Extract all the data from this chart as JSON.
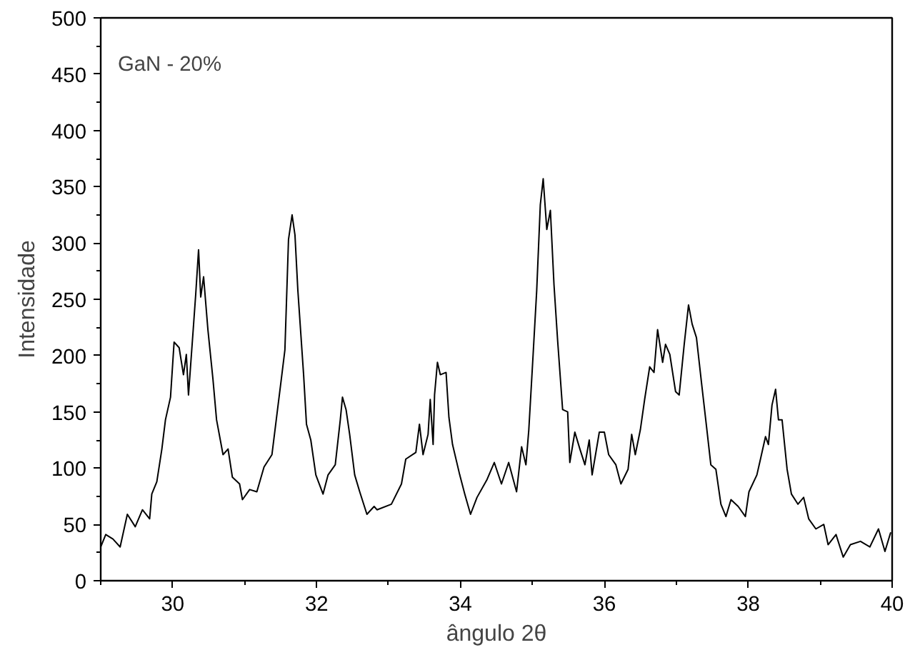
{
  "chart_data": {
    "type": "line",
    "xlabel": "ângulo 2θ",
    "ylabel": "Intensidade",
    "annotations": [
      "GaN - 20%"
    ],
    "xlim": [
      29,
      40
    ],
    "ylim": [
      0,
      500
    ],
    "xticks": [
      {
        "value": 29,
        "label": null
      },
      30,
      {
        "value": 31,
        "label": null
      },
      32,
      {
        "value": 33,
        "label": null
      },
      34,
      {
        "value": 35,
        "label": null
      },
      36,
      {
        "value": 37,
        "label": null
      },
      38,
      {
        "value": 39,
        "label": null
      },
      40
    ],
    "yticks": [
      0,
      {
        "value": 25,
        "label": null
      },
      50,
      {
        "value": 75,
        "label": null
      },
      100,
      {
        "value": 125,
        "label": null
      },
      150,
      {
        "value": 175,
        "label": null
      },
      200,
      {
        "value": 225,
        "label": null
      },
      250,
      {
        "value": 275,
        "label": null
      },
      300,
      {
        "value": 325,
        "label": null
      },
      350,
      {
        "value": 375,
        "label": null
      },
      400,
      {
        "value": 425,
        "label": null
      },
      450,
      {
        "value": 475,
        "label": null
      },
      500
    ],
    "grid": false,
    "marker": "none",
    "line_style": "solid",
    "series": [
      {
        "color": "#000000",
        "x": [
          29.0,
          29.07,
          29.17,
          29.27,
          29.37,
          29.48,
          29.58,
          29.68,
          29.71,
          29.78,
          29.85,
          29.9,
          29.97,
          30.02,
          30.09,
          30.15,
          30.19,
          30.22,
          30.29,
          30.32,
          30.36,
          30.39,
          30.43,
          30.49,
          30.56,
          30.61,
          30.7,
          30.77,
          30.83,
          30.93,
          30.97,
          31.07,
          31.17,
          31.27,
          31.38,
          31.44,
          31.51,
          31.56,
          31.61,
          31.66,
          31.7,
          31.74,
          31.82,
          31.86,
          31.92,
          31.99,
          32.09,
          32.16,
          32.26,
          32.33,
          32.36,
          32.41,
          32.46,
          32.53,
          32.6,
          32.7,
          32.8,
          32.84,
          33.04,
          33.18,
          33.24,
          33.38,
          33.43,
          33.48,
          33.55,
          33.58,
          33.62,
          33.64,
          33.68,
          33.72,
          33.8,
          33.84,
          33.89,
          33.99,
          34.06,
          34.14,
          34.23,
          34.37,
          34.47,
          34.57,
          34.67,
          34.78,
          34.85,
          34.91,
          34.95,
          35.01,
          35.06,
          35.11,
          35.15,
          35.2,
          35.25,
          35.3,
          35.35,
          35.42,
          35.49,
          35.52,
          35.59,
          35.66,
          35.73,
          35.79,
          35.83,
          35.93,
          36.0,
          36.06,
          36.16,
          36.23,
          36.33,
          36.38,
          36.43,
          36.5,
          36.56,
          36.63,
          36.69,
          36.74,
          36.81,
          36.85,
          36.91,
          36.99,
          37.04,
          37.11,
          37.17,
          37.22,
          37.28,
          37.35,
          37.42,
          37.48,
          37.55,
          37.62,
          37.69,
          37.76,
          37.86,
          37.96,
          38.01,
          38.12,
          38.17,
          38.24,
          38.28,
          38.33,
          38.38,
          38.42,
          38.47,
          38.54,
          38.6,
          38.69,
          38.77,
          38.84,
          38.94,
          39.05,
          39.11,
          39.22,
          39.32,
          39.42,
          39.56,
          39.69,
          39.81,
          39.9,
          39.98
        ],
        "values": [
          30,
          41,
          37,
          30,
          59,
          48,
          63,
          55,
          77,
          88,
          117,
          143,
          163,
          212,
          207,
          183,
          201,
          165,
          227,
          254,
          294,
          252,
          270,
          223,
          179,
          143,
          112,
          117,
          92,
          86,
          72,
          81,
          79,
          101,
          112,
          143,
          179,
          205,
          303,
          325,
          307,
          258,
          183,
          139,
          125,
          94,
          77,
          94,
          103,
          143,
          163,
          152,
          130,
          94,
          79,
          59,
          66,
          63,
          68,
          86,
          108,
          114,
          139,
          112,
          130,
          161,
          121,
          165,
          194,
          183,
          185,
          145,
          121,
          94,
          77,
          59,
          74,
          90,
          105,
          86,
          105,
          79,
          119,
          103,
          134,
          201,
          258,
          334,
          357,
          312,
          329,
          263,
          214,
          152,
          150,
          105,
          132,
          117,
          103,
          125,
          94,
          132,
          132,
          112,
          103,
          86,
          99,
          130,
          112,
          134,
          161,
          190,
          185,
          223,
          194,
          210,
          201,
          168,
          165,
          210,
          245,
          228,
          216,
          176,
          137,
          103,
          99,
          68,
          57,
          72,
          66,
          57,
          79,
          94,
          108,
          128,
          121,
          156,
          170,
          143,
          143,
          99,
          77,
          68,
          74,
          55,
          46,
          50,
          32,
          41,
          21,
          32,
          35,
          30,
          46,
          26,
          43
        ]
      }
    ]
  }
}
